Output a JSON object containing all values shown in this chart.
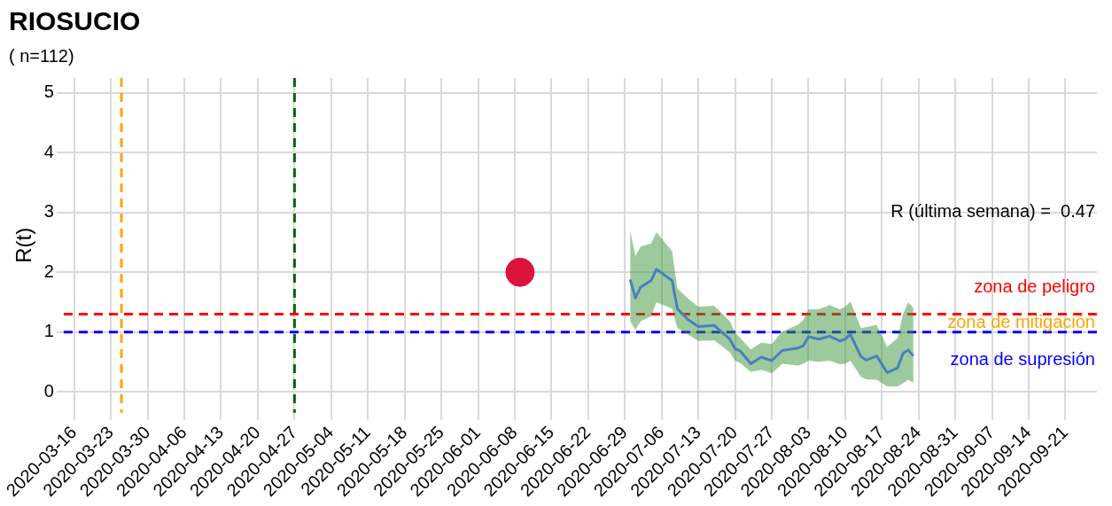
{
  "chart_data": {
    "type": "line",
    "title": "RIOSUCIO",
    "subtitle": "( n=112)",
    "ylabel": "R(t)",
    "xlim": [
      "2020-03-14",
      "2020-09-27"
    ],
    "xticks": [
      "2020-03-16",
      "2020-03-23",
      "2020-03-30",
      "2020-04-06",
      "2020-04-13",
      "2020-04-20",
      "2020-04-27",
      "2020-05-04",
      "2020-05-11",
      "2020-05-18",
      "2020-05-25",
      "2020-06-01",
      "2020-06-08",
      "2020-06-15",
      "2020-06-22",
      "2020-06-29",
      "2020-07-06",
      "2020-07-13",
      "2020-07-20",
      "2020-07-27",
      "2020-08-03",
      "2020-08-10",
      "2020-08-17",
      "2020-08-24",
      "2020-08-31",
      "2020-09-07",
      "2020-09-14",
      "2020-09-21"
    ],
    "ylim": [
      -0.35,
      5.25
    ],
    "yticks": [
      0,
      1,
      2,
      3,
      4,
      5
    ],
    "grid": true,
    "legend": false,
    "series": [
      {
        "color": "#4a7fc0",
        "marker": "none",
        "line_style": "solid",
        "x": [
          "2020-06-30",
          "2020-07-01",
          "2020-07-02",
          "2020-07-04",
          "2020-07-05",
          "2020-07-08",
          "2020-07-09",
          "2020-07-11",
          "2020-07-13",
          "2020-07-16",
          "2020-07-19",
          "2020-07-20",
          "2020-07-21",
          "2020-07-23",
          "2020-07-25",
          "2020-07-27",
          "2020-07-29",
          "2020-08-01",
          "2020-08-02",
          "2020-08-03",
          "2020-08-05",
          "2020-08-07",
          "2020-08-09",
          "2020-08-10",
          "2020-08-11",
          "2020-08-13",
          "2020-08-14",
          "2020-08-16",
          "2020-08-18",
          "2020-08-20",
          "2020-08-21",
          "2020-08-22",
          "2020-08-23"
        ],
        "values": [
          1.88,
          1.57,
          1.75,
          1.86,
          2.05,
          1.86,
          1.39,
          1.21,
          1.09,
          1.11,
          0.88,
          0.72,
          0.68,
          0.47,
          0.58,
          0.52,
          0.69,
          0.73,
          0.77,
          0.92,
          0.88,
          0.93,
          0.85,
          0.88,
          0.96,
          0.59,
          0.53,
          0.6,
          0.32,
          0.4,
          0.64,
          0.7,
          0.6
        ],
        "upper": [
          2.7,
          2.27,
          2.43,
          2.48,
          2.67,
          2.35,
          1.73,
          1.56,
          1.42,
          1.44,
          1.18,
          0.99,
          0.9,
          0.71,
          0.82,
          0.8,
          1.01,
          1.12,
          1.2,
          1.38,
          1.38,
          1.45,
          1.38,
          1.42,
          1.51,
          1.07,
          1.08,
          1.12,
          0.75,
          0.9,
          1.29,
          1.5,
          1.4
        ],
        "lower": [
          1.18,
          1.04,
          1.18,
          1.26,
          1.5,
          1.39,
          1.07,
          0.96,
          0.85,
          0.86,
          0.66,
          0.52,
          0.48,
          0.33,
          0.37,
          0.31,
          0.47,
          0.44,
          0.47,
          0.52,
          0.5,
          0.52,
          0.46,
          0.47,
          0.52,
          0.25,
          0.21,
          0.2,
          0.09,
          0.09,
          0.14,
          0.2,
          0.15
        ]
      },
      {
        "type": "scatter",
        "color": "#dc143c",
        "marker": "circle",
        "x": [
          "2020-06-09"
        ],
        "values": [
          2
        ]
      }
    ],
    "ref_lines": [
      {
        "axis": "y",
        "value": 1.3,
        "label": "zona de peligro",
        "color": "#ff0000",
        "line_style": "dashed"
      },
      {
        "axis": "y",
        "value": 1,
        "label": "zona de supresión",
        "color": "#0000ff",
        "line_style": "dashed"
      },
      {
        "axis": "x",
        "value": "2020-03-25",
        "color": "#ffa500",
        "line_style": "dashed"
      },
      {
        "axis": "x",
        "value": "2020-04-27",
        "color": "#006400",
        "line_style": "dashed"
      }
    ],
    "annotations": [
      "zona de mitigación",
      "R (última semana) =  0.47"
    ]
  }
}
